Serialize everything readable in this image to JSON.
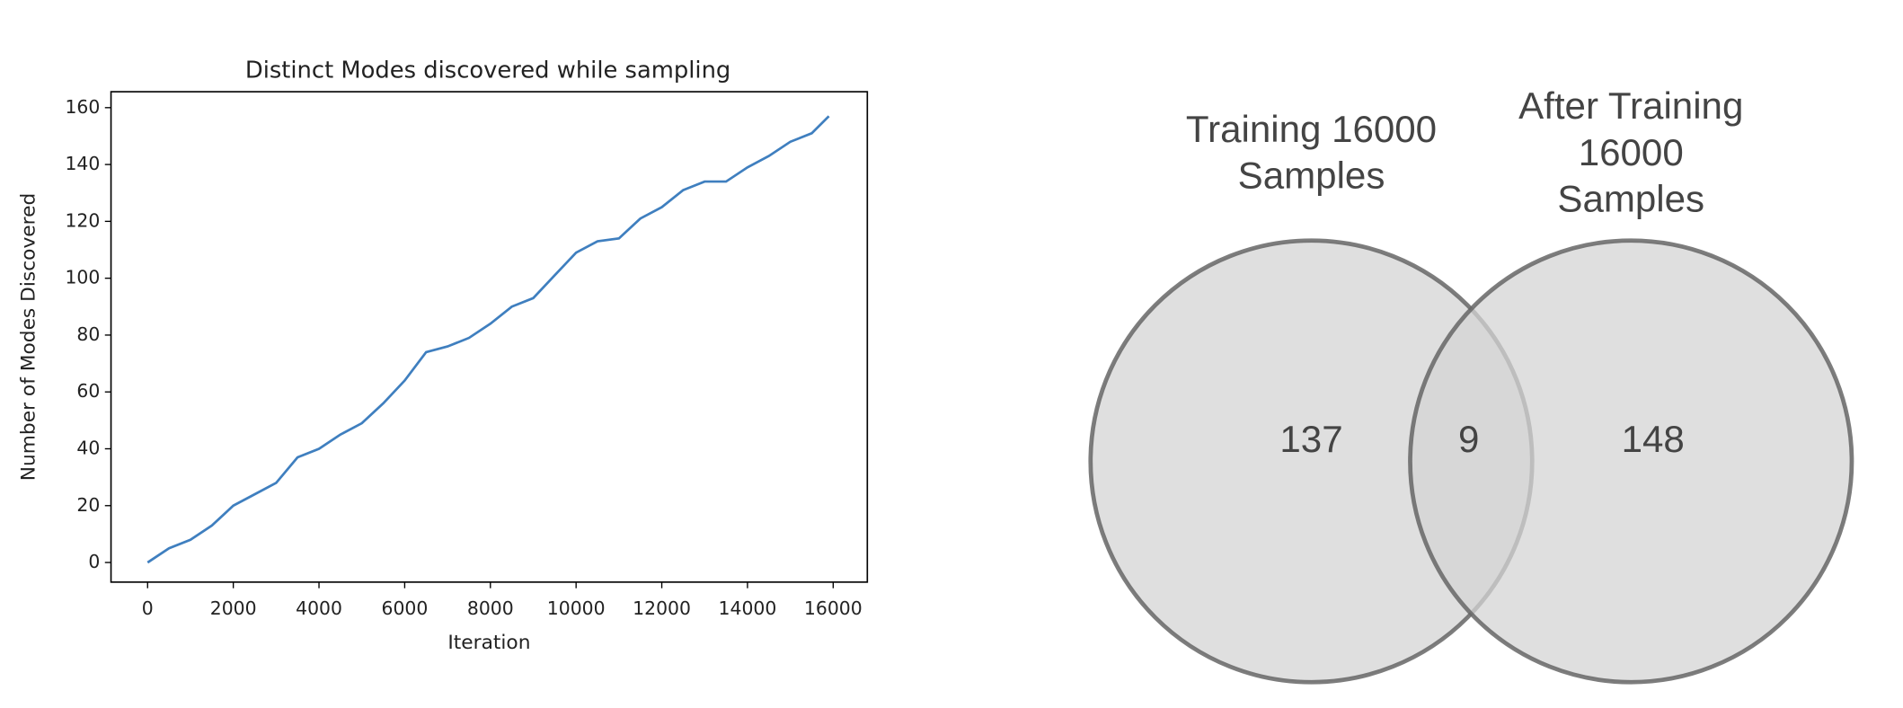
{
  "chart_data": [
    {
      "type": "line",
      "title": "Distinct Modes discovered while sampling",
      "xlabel": "Iteration",
      "ylabel": "Number of Modes Discovered",
      "x": [
        0,
        500,
        1000,
        1500,
        2000,
        2500,
        3000,
        3500,
        4000,
        4500,
        5000,
        5500,
        6000,
        6500,
        7000,
        7500,
        8000,
        8500,
        9000,
        9500,
        10000,
        10500,
        11000,
        11500,
        12000,
        12500,
        13000,
        13500,
        14000,
        14500,
        15000,
        15500,
        15900
      ],
      "series": [
        {
          "color": "#3f7fbf",
          "values": [
            0,
            5,
            8,
            13,
            20,
            24,
            28,
            37,
            40,
            45,
            49,
            56,
            64,
            74,
            76,
            79,
            84,
            90,
            93,
            101,
            109,
            113,
            114,
            121,
            125,
            131,
            134,
            134,
            139,
            143,
            148,
            151,
            157
          ]
        }
      ],
      "xlim": [
        -854,
        16797
      ],
      "ylim": [
        -6.9,
        165.6
      ],
      "xticks": [
        0,
        2000,
        4000,
        6000,
        8000,
        10000,
        12000,
        14000,
        16000
      ],
      "yticks": [
        0,
        20,
        40,
        60,
        80,
        100,
        120,
        140,
        160
      ]
    },
    {
      "type": "venn",
      "sets": [
        {
          "label_lines": [
            "Training 16000",
            "Samples"
          ],
          "color": "#d4d4d4"
        },
        {
          "label_lines": [
            "After Training",
            "16000",
            "Samples"
          ],
          "color": "#d4d4d4"
        }
      ],
      "values": [
        137,
        9,
        148
      ]
    }
  ]
}
